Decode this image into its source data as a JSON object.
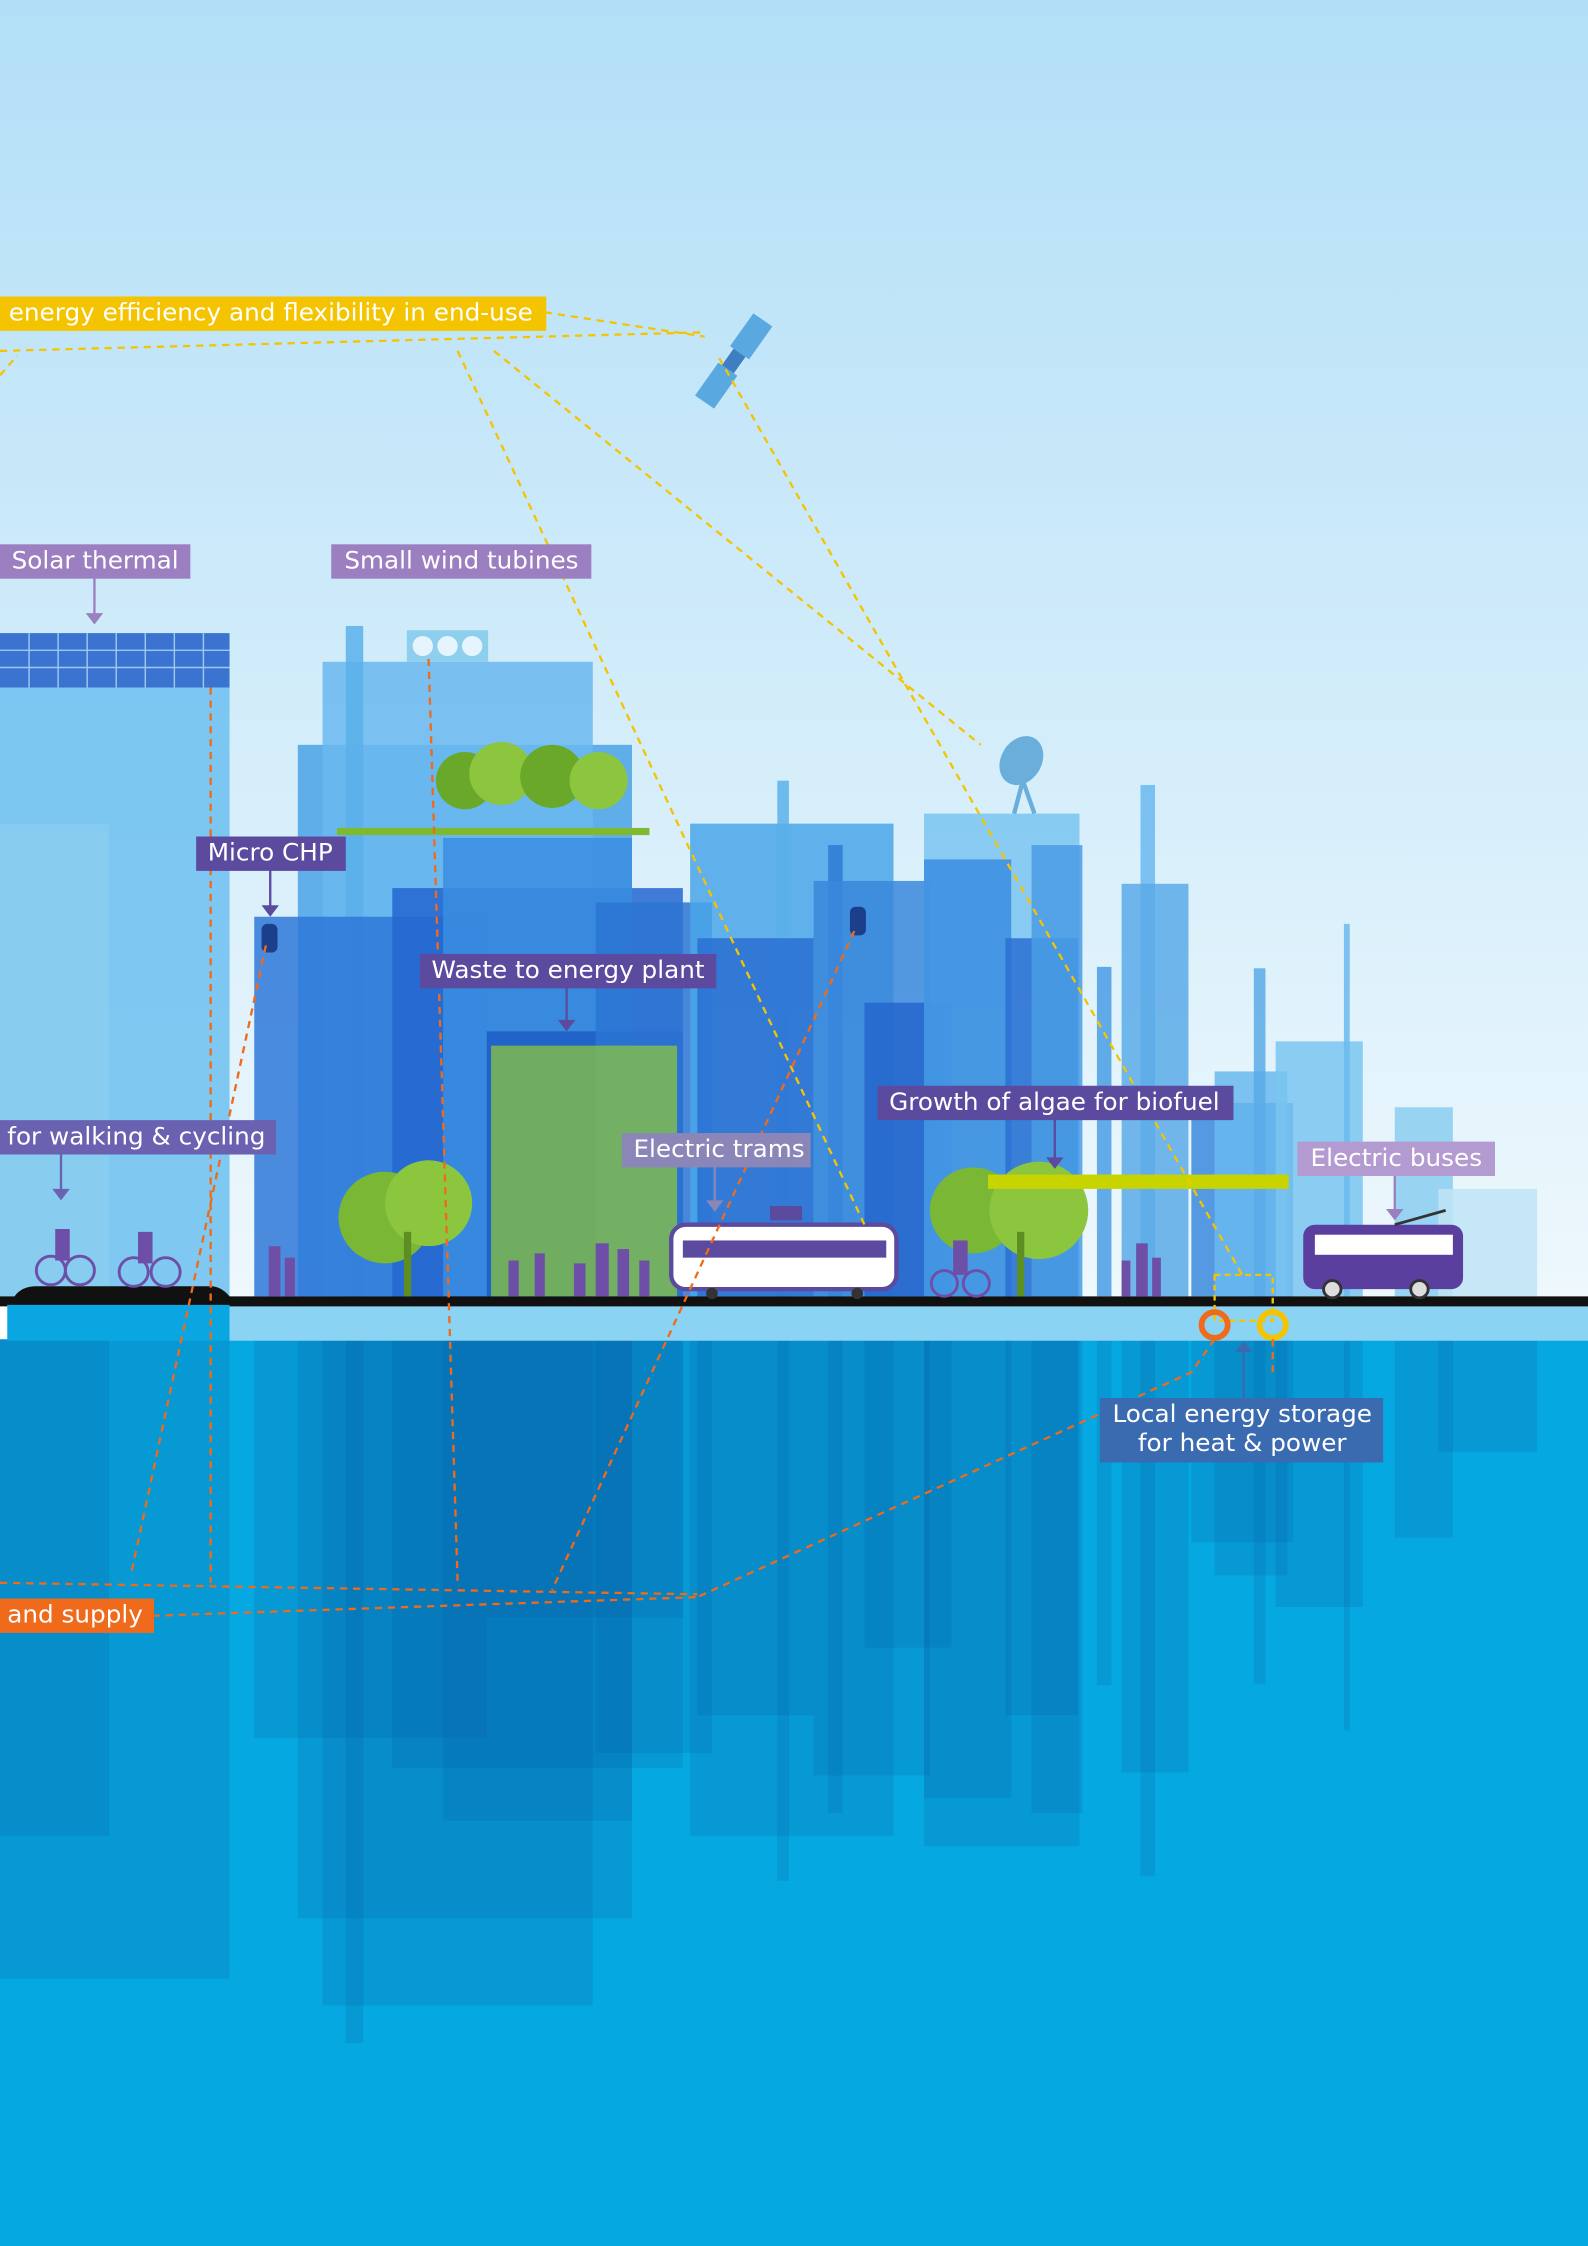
{
  "labels": [
    {
      "text": "energy efficiency and flexibility in end-use"
    },
    {
      "text": "Solar thermal"
    },
    {
      "text": "Small wind tubines"
    },
    {
      "text": "Micro CHP"
    },
    {
      "text": "Waste to energy plant"
    },
    {
      "text": "for walking & cycling"
    },
    {
      "text": "Electric trams"
    },
    {
      "text": "Growth of algae for biofuel"
    },
    {
      "text": "Electric buses"
    },
    {
      "lines": [
        "Local energy storage",
        "for heat & power"
      ]
    },
    {
      "text": "and supply"
    }
  ]
}
